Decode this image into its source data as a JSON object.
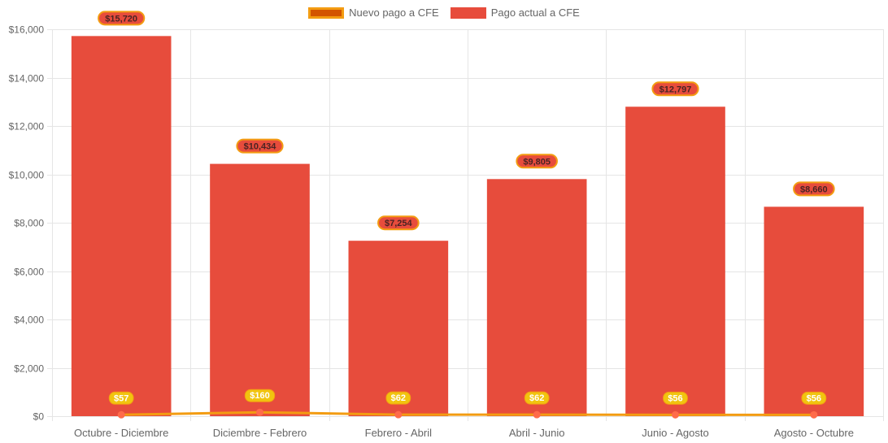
{
  "chart_data": {
    "type": "bar",
    "categories": [
      "Octubre - Diciembre",
      "Diciembre - Febrero",
      "Febrero - Abril",
      "Abril - Junio",
      "Junio - Agosto",
      "Agosto - Octubre"
    ],
    "series": [
      {
        "name": "Pago actual a CFE",
        "kind": "bar",
        "color": "#e74c3c",
        "values": [
          15720,
          10434,
          7254,
          9805,
          12797,
          8660
        ],
        "labels": [
          "$15,720",
          "$10,434",
          "$7,254",
          "$9,805",
          "$12,797",
          "$8,660"
        ]
      },
      {
        "name": "Nuevo pago a CFE",
        "kind": "line",
        "color": "#f39c12",
        "point_color": "#ff6b4a",
        "values": [
          57,
          160,
          62,
          62,
          56,
          56
        ],
        "labels": [
          "$57",
          "$160",
          "$62",
          "$62",
          "$56",
          "$56"
        ]
      }
    ],
    "yticks": [
      0,
      2000,
      4000,
      6000,
      8000,
      10000,
      12000,
      14000,
      16000
    ],
    "ytick_labels": [
      "$0",
      "$2,000",
      "$4,000",
      "$6,000",
      "$8,000",
      "$10,000",
      "$12,000",
      "$14,000",
      "$16,000"
    ],
    "ylim": [
      0,
      16000
    ],
    "legend_position": "top-center",
    "grid": true
  },
  "legend": {
    "line_label": "Nuevo pago a CFE",
    "bar_label": "Pago actual a CFE"
  }
}
